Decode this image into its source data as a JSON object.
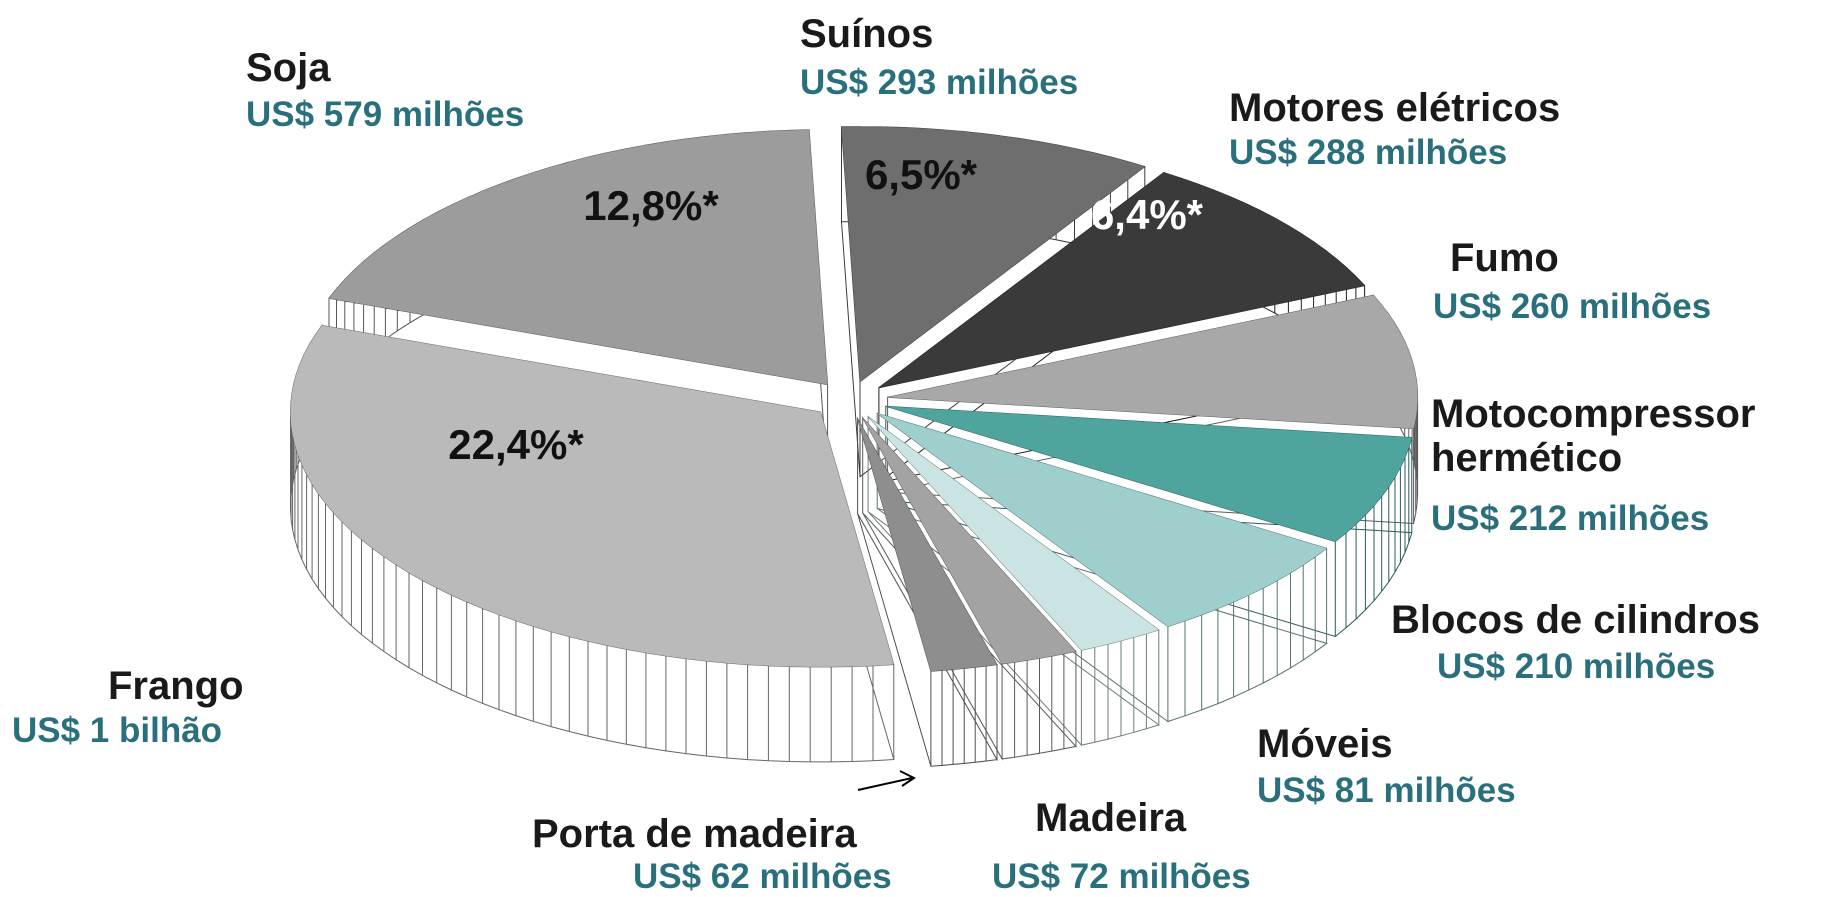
{
  "chart_data": {
    "type": "pie3d",
    "categories": [
      "Suínos",
      "Motores elétricos",
      "Fumo",
      "Motocompressor hermético",
      "Blocos de cilindros",
      "Móveis",
      "Madeira",
      "Porta de madeira",
      "Frango",
      "Soja"
    ],
    "values": [
      293,
      288,
      260,
      212,
      210,
      81,
      72,
      62,
      1000,
      579
    ],
    "value_labels": [
      "US$ 293 milhões",
      "US$ 288 milhões",
      "US$ 260 milhões",
      "US$ 212 milhões",
      "US$ 210 milhões",
      "US$ 81 milhões",
      "US$ 72 milhões",
      "US$ 62 milhões",
      "US$ 1 bilhão",
      "US$ 579 milhões"
    ],
    "share_labels": [
      "6,5%*",
      "6,4%*",
      null,
      null,
      null,
      null,
      null,
      null,
      "22,4%*",
      "12,8%*"
    ],
    "colors": [
      "#6e6e6e",
      "#3a3a3a",
      "#a8a8a8",
      "#4fa59e",
      "#9ecfcc",
      "#c9e4e2",
      "#a3a3a3",
      "#8e8e8e",
      "#bababa",
      "#9c9c9c"
    ]
  }
}
